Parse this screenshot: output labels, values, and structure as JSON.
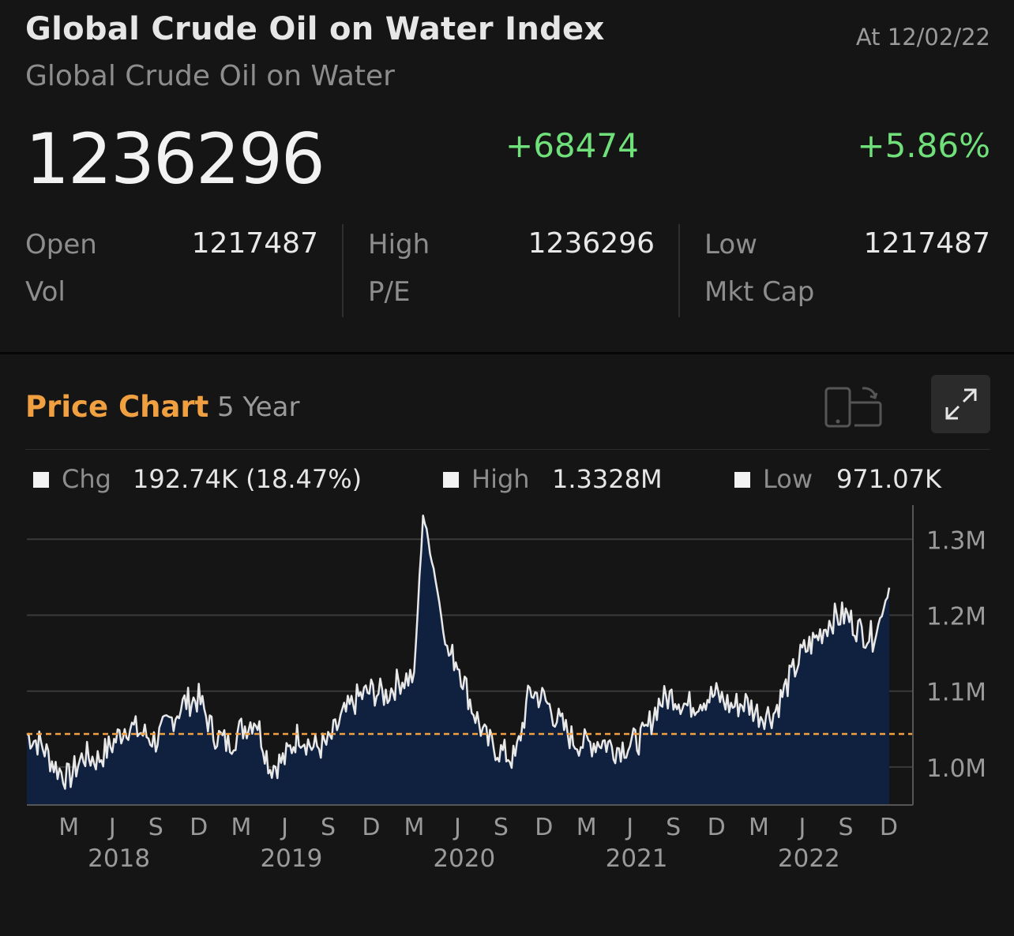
{
  "header": {
    "title": "Global Crude Oil on Water Index",
    "subtitle": "Global Crude Oil on Water",
    "as_of": "At 12/02/22",
    "price": "1236296",
    "change": "+68474",
    "change_pct": "+5.86%"
  },
  "stats": {
    "open_label": "Open",
    "open_value": "1217487",
    "high_label": "High",
    "high_value": "1236296",
    "low_label": "Low",
    "low_value": "1217487",
    "vol_label": "Vol",
    "pe_label": "P/E",
    "mktcap_label": "Mkt Cap"
  },
  "price_chart": {
    "title": "Price Chart",
    "range": "5 Year",
    "rotate_icon": "rotate-device-icon",
    "expand_icon": "expand-icon"
  },
  "legend": {
    "chg_label": "Chg",
    "chg_value": "192.74K (18.47%)",
    "high_label": "High",
    "high_value": "1.3328M",
    "low_label": "Low",
    "low_value": "971.07K"
  },
  "colors": {
    "positive": "#6fe07a",
    "accent": "#f0a040",
    "area_fill": "#10213f",
    "line": "#e8e8e8",
    "reference": "#f0a040"
  },
  "chart_data": {
    "type": "area",
    "ylim": [
      950000,
      1345000
    ],
    "y_ticks": [
      1000000,
      1100000,
      1200000,
      1300000
    ],
    "y_tick_labels": [
      "1.0M",
      "1.1M",
      "1.2M",
      "1.3M"
    ],
    "x_range": [
      "2017-12-02",
      "2022-12-02"
    ],
    "x_ticks": [
      {
        "label": "M",
        "date": "2018-03-01"
      },
      {
        "label": "J",
        "date": "2018-06-01"
      },
      {
        "label": "S",
        "date": "2018-09-01"
      },
      {
        "label": "D",
        "date": "2018-12-01"
      },
      {
        "label": "M",
        "date": "2019-03-01"
      },
      {
        "label": "J",
        "date": "2019-06-01"
      },
      {
        "label": "S",
        "date": "2019-09-01"
      },
      {
        "label": "D",
        "date": "2019-12-01"
      },
      {
        "label": "M",
        "date": "2020-03-01"
      },
      {
        "label": "J",
        "date": "2020-06-01"
      },
      {
        "label": "S",
        "date": "2020-09-01"
      },
      {
        "label": "D",
        "date": "2020-12-01"
      },
      {
        "label": "M",
        "date": "2021-03-01"
      },
      {
        "label": "J",
        "date": "2021-06-01"
      },
      {
        "label": "S",
        "date": "2021-09-01"
      },
      {
        "label": "D",
        "date": "2021-12-01"
      },
      {
        "label": "M",
        "date": "2022-03-01"
      },
      {
        "label": "J",
        "date": "2022-06-01"
      },
      {
        "label": "S",
        "date": "2022-09-01"
      },
      {
        "label": "D",
        "date": "2022-12-01"
      }
    ],
    "year_labels": [
      {
        "label": "2018",
        "date": "2018-06-15"
      },
      {
        "label": "2019",
        "date": "2019-06-15"
      },
      {
        "label": "2020",
        "date": "2020-06-15"
      },
      {
        "label": "2021",
        "date": "2021-06-15"
      },
      {
        "label": "2022",
        "date": "2022-06-15"
      }
    ],
    "reference_line": 1043500,
    "grid": true,
    "series": [
      {
        "points": [
          [
            "2017-12-02",
            1043000
          ],
          [
            "2018-01-01",
            1030000
          ],
          [
            "2018-02-01",
            1000000
          ],
          [
            "2018-03-01",
            985000
          ],
          [
            "2018-04-01",
            1015000
          ],
          [
            "2018-05-01",
            1010000
          ],
          [
            "2018-06-01",
            1030000
          ],
          [
            "2018-07-01",
            1055000
          ],
          [
            "2018-08-01",
            1045000
          ],
          [
            "2018-09-01",
            1035000
          ],
          [
            "2018-10-01",
            1060000
          ],
          [
            "2018-11-01",
            1085000
          ],
          [
            "2018-12-01",
            1090000
          ],
          [
            "2019-01-01",
            1045000
          ],
          [
            "2019-02-01",
            1030000
          ],
          [
            "2019-03-01",
            1050000
          ],
          [
            "2019-04-01",
            1065000
          ],
          [
            "2019-05-01",
            1000000
          ],
          [
            "2019-06-01",
            1010000
          ],
          [
            "2019-07-01",
            1045000
          ],
          [
            "2019-08-01",
            1025000
          ],
          [
            "2019-09-01",
            1030000
          ],
          [
            "2019-10-01",
            1065000
          ],
          [
            "2019-11-01",
            1090000
          ],
          [
            "2019-12-01",
            1100000
          ],
          [
            "2020-01-01",
            1095000
          ],
          [
            "2020-02-01",
            1115000
          ],
          [
            "2020-03-01",
            1120000
          ],
          [
            "2020-03-20",
            1333000
          ],
          [
            "2020-04-15",
            1250000
          ],
          [
            "2020-05-10",
            1150000
          ],
          [
            "2020-06-01",
            1140000
          ],
          [
            "2020-07-01",
            1080000
          ],
          [
            "2020-08-01",
            1035000
          ],
          [
            "2020-09-01",
            1020000
          ],
          [
            "2020-10-01",
            1010000
          ],
          [
            "2020-11-01",
            1100000
          ],
          [
            "2020-12-01",
            1090000
          ],
          [
            "2021-01-01",
            1060000
          ],
          [
            "2021-02-01",
            1035000
          ],
          [
            "2021-03-01",
            1030000
          ],
          [
            "2021-04-01",
            1035000
          ],
          [
            "2021-05-01",
            1025000
          ],
          [
            "2021-06-01",
            1030000
          ],
          [
            "2021-07-01",
            1040000
          ],
          [
            "2021-08-01",
            1085000
          ],
          [
            "2021-09-01",
            1095000
          ],
          [
            "2021-10-01",
            1080000
          ],
          [
            "2021-11-01",
            1090000
          ],
          [
            "2021-12-01",
            1095000
          ],
          [
            "2022-01-01",
            1080000
          ],
          [
            "2022-02-01",
            1085000
          ],
          [
            "2022-03-01",
            1070000
          ],
          [
            "2022-04-01",
            1070000
          ],
          [
            "2022-05-01",
            1110000
          ],
          [
            "2022-06-01",
            1150000
          ],
          [
            "2022-07-01",
            1170000
          ],
          [
            "2022-08-01",
            1195000
          ],
          [
            "2022-09-01",
            1200000
          ],
          [
            "2022-10-01",
            1180000
          ],
          [
            "2022-11-01",
            1170000
          ],
          [
            "2022-12-02",
            1236296
          ]
        ]
      }
    ]
  }
}
